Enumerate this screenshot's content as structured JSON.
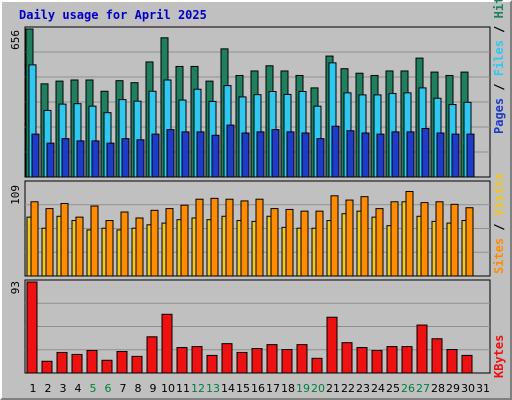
{
  "title": "Daily usage for April 2025",
  "colors": {
    "hits": "#1f7f5f",
    "files": "#2fc8f0",
    "pages": "#1e3cc8",
    "visits": "#f0c820",
    "sites": "#ff8c00",
    "kbytes": "#ee1111",
    "weekend_label": "#008040",
    "weekday_label": "#000000",
    "panel_bg": "#c0c0c0",
    "grid": "#909090"
  },
  "chart_data": [
    {
      "type": "bar",
      "panel": "top",
      "y_tick_label": "656",
      "ylim": [
        0,
        656
      ],
      "right_label": [
        "Pages",
        "Files",
        "Hits"
      ],
      "categories": [
        "1",
        "2",
        "3",
        "4",
        "5",
        "6",
        "7",
        "8",
        "9",
        "10",
        "11",
        "12",
        "13",
        "14",
        "15",
        "16",
        "17",
        "18",
        "19",
        "20",
        "21",
        "22",
        "23",
        "24",
        "25",
        "26",
        "27",
        "28",
        "29",
        "30",
        "31"
      ],
      "series": [
        {
          "name": "Hits",
          "values": [
            656,
            413,
            425,
            430,
            430,
            380,
            427,
            418,
            510,
            617,
            490,
            490,
            425,
            568,
            450,
            470,
            493,
            470,
            450,
            395,
            536,
            480,
            460,
            450,
            470,
            470,
            527,
            465,
            450,
            465,
            0
          ]
        },
        {
          "name": "Files",
          "values": [
            497,
            295,
            323,
            325,
            314,
            285,
            343,
            336,
            380,
            430,
            341,
            389,
            335,
            405,
            355,
            365,
            379,
            366,
            379,
            314,
            506,
            373,
            364,
            364,
            370,
            373,
            395,
            349,
            321,
            331,
            0
          ]
        },
        {
          "name": "Pages",
          "values": [
            190,
            150,
            170,
            160,
            160,
            150,
            170,
            165,
            190,
            210,
            200,
            200,
            185,
            230,
            195,
            200,
            210,
            200,
            195,
            170,
            225,
            205,
            195,
            190,
            200,
            200,
            215,
            195,
            190,
            190,
            0
          ]
        }
      ]
    },
    {
      "type": "bar",
      "panel": "middle",
      "y_tick_label": "109",
      "ylim": [
        0,
        109
      ],
      "right_label": [
        "Sites",
        "Visits"
      ],
      "categories": [
        "1",
        "2",
        "3",
        "4",
        "5",
        "6",
        "7",
        "8",
        "9",
        "10",
        "11",
        "12",
        "13",
        "14",
        "15",
        "16",
        "17",
        "18",
        "19",
        "20",
        "21",
        "22",
        "23",
        "24",
        "25",
        "26",
        "27",
        "28",
        "29",
        "30",
        "31"
      ],
      "series": [
        {
          "name": "Visits",
          "values": [
            69,
            56,
            70,
            65,
            54,
            56,
            54,
            56,
            60,
            62,
            66,
            68,
            66,
            70,
            65,
            64,
            70,
            57,
            56,
            56,
            65,
            73,
            76,
            69,
            59,
            87,
            70,
            64,
            62,
            65,
            0
          ]
        },
        {
          "name": "Sites",
          "values": [
            87,
            79,
            85,
            69,
            82,
            65,
            75,
            68,
            77,
            79,
            83,
            90,
            91,
            90,
            88,
            90,
            79,
            78,
            76,
            76,
            94,
            89,
            93,
            79,
            87,
            99,
            86,
            87,
            84,
            80,
            0
          ]
        }
      ]
    },
    {
      "type": "bar",
      "panel": "bottom",
      "y_tick_label": "93",
      "ylim": [
        0,
        93
      ],
      "right_label": [
        "KBytes"
      ],
      "categories": [
        "1",
        "2",
        "3",
        "4",
        "5",
        "6",
        "7",
        "8",
        "9",
        "10",
        "11",
        "12",
        "13",
        "14",
        "15",
        "16",
        "17",
        "18",
        "19",
        "20",
        "21",
        "22",
        "23",
        "24",
        "25",
        "26",
        "27",
        "28",
        "29",
        "30",
        "31"
      ],
      "weekend_days": [
        "5",
        "6",
        "12",
        "13",
        "19",
        "20",
        "26",
        "27"
      ],
      "series": [
        {
          "name": "KBytes",
          "values": [
            93,
            12,
            21,
            19,
            23,
            13,
            22,
            17,
            37,
            60,
            26,
            27,
            18,
            30,
            21,
            25,
            29,
            24,
            29,
            15,
            57,
            31,
            26,
            23,
            27,
            27,
            49,
            35,
            24,
            18,
            0
          ]
        }
      ]
    }
  ]
}
